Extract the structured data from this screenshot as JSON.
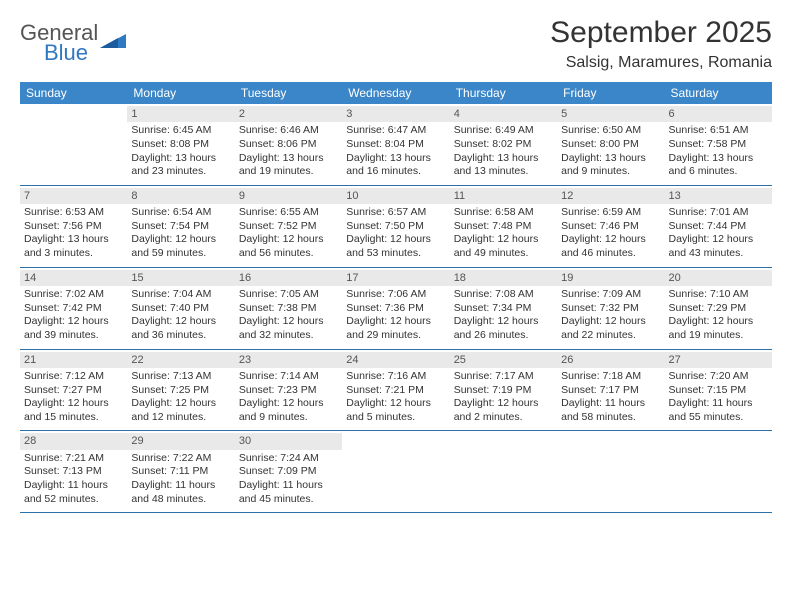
{
  "logo": {
    "word1": "General",
    "word2": "Blue",
    "color_gray": "#555555",
    "color_blue": "#2f78c2"
  },
  "title": "September 2025",
  "location": "Salsig, Maramures, Romania",
  "header_bg": "#3b86c8",
  "daynum_bg": "#e9e9e9",
  "border_color": "#2d6fa8",
  "dow": [
    "Sunday",
    "Monday",
    "Tuesday",
    "Wednesday",
    "Thursday",
    "Friday",
    "Saturday"
  ],
  "weeks": [
    [
      {
        "n": "",
        "lines": []
      },
      {
        "n": "1",
        "lines": [
          "Sunrise: 6:45 AM",
          "Sunset: 8:08 PM",
          "Daylight: 13 hours and 23 minutes."
        ]
      },
      {
        "n": "2",
        "lines": [
          "Sunrise: 6:46 AM",
          "Sunset: 8:06 PM",
          "Daylight: 13 hours and 19 minutes."
        ]
      },
      {
        "n": "3",
        "lines": [
          "Sunrise: 6:47 AM",
          "Sunset: 8:04 PM",
          "Daylight: 13 hours and 16 minutes."
        ]
      },
      {
        "n": "4",
        "lines": [
          "Sunrise: 6:49 AM",
          "Sunset: 8:02 PM",
          "Daylight: 13 hours and 13 minutes."
        ]
      },
      {
        "n": "5",
        "lines": [
          "Sunrise: 6:50 AM",
          "Sunset: 8:00 PM",
          "Daylight: 13 hours and 9 minutes."
        ]
      },
      {
        "n": "6",
        "lines": [
          "Sunrise: 6:51 AM",
          "Sunset: 7:58 PM",
          "Daylight: 13 hours and 6 minutes."
        ]
      }
    ],
    [
      {
        "n": "7",
        "lines": [
          "Sunrise: 6:53 AM",
          "Sunset: 7:56 PM",
          "Daylight: 13 hours and 3 minutes."
        ]
      },
      {
        "n": "8",
        "lines": [
          "Sunrise: 6:54 AM",
          "Sunset: 7:54 PM",
          "Daylight: 12 hours and 59 minutes."
        ]
      },
      {
        "n": "9",
        "lines": [
          "Sunrise: 6:55 AM",
          "Sunset: 7:52 PM",
          "Daylight: 12 hours and 56 minutes."
        ]
      },
      {
        "n": "10",
        "lines": [
          "Sunrise: 6:57 AM",
          "Sunset: 7:50 PM",
          "Daylight: 12 hours and 53 minutes."
        ]
      },
      {
        "n": "11",
        "lines": [
          "Sunrise: 6:58 AM",
          "Sunset: 7:48 PM",
          "Daylight: 12 hours and 49 minutes."
        ]
      },
      {
        "n": "12",
        "lines": [
          "Sunrise: 6:59 AM",
          "Sunset: 7:46 PM",
          "Daylight: 12 hours and 46 minutes."
        ]
      },
      {
        "n": "13",
        "lines": [
          "Sunrise: 7:01 AM",
          "Sunset: 7:44 PM",
          "Daylight: 12 hours and 43 minutes."
        ]
      }
    ],
    [
      {
        "n": "14",
        "lines": [
          "Sunrise: 7:02 AM",
          "Sunset: 7:42 PM",
          "Daylight: 12 hours and 39 minutes."
        ]
      },
      {
        "n": "15",
        "lines": [
          "Sunrise: 7:04 AM",
          "Sunset: 7:40 PM",
          "Daylight: 12 hours and 36 minutes."
        ]
      },
      {
        "n": "16",
        "lines": [
          "Sunrise: 7:05 AM",
          "Sunset: 7:38 PM",
          "Daylight: 12 hours and 32 minutes."
        ]
      },
      {
        "n": "17",
        "lines": [
          "Sunrise: 7:06 AM",
          "Sunset: 7:36 PM",
          "Daylight: 12 hours and 29 minutes."
        ]
      },
      {
        "n": "18",
        "lines": [
          "Sunrise: 7:08 AM",
          "Sunset: 7:34 PM",
          "Daylight: 12 hours and 26 minutes."
        ]
      },
      {
        "n": "19",
        "lines": [
          "Sunrise: 7:09 AM",
          "Sunset: 7:32 PM",
          "Daylight: 12 hours and 22 minutes."
        ]
      },
      {
        "n": "20",
        "lines": [
          "Sunrise: 7:10 AM",
          "Sunset: 7:29 PM",
          "Daylight: 12 hours and 19 minutes."
        ]
      }
    ],
    [
      {
        "n": "21",
        "lines": [
          "Sunrise: 7:12 AM",
          "Sunset: 7:27 PM",
          "Daylight: 12 hours and 15 minutes."
        ]
      },
      {
        "n": "22",
        "lines": [
          "Sunrise: 7:13 AM",
          "Sunset: 7:25 PM",
          "Daylight: 12 hours and 12 minutes."
        ]
      },
      {
        "n": "23",
        "lines": [
          "Sunrise: 7:14 AM",
          "Sunset: 7:23 PM",
          "Daylight: 12 hours and 9 minutes."
        ]
      },
      {
        "n": "24",
        "lines": [
          "Sunrise: 7:16 AM",
          "Sunset: 7:21 PM",
          "Daylight: 12 hours and 5 minutes."
        ]
      },
      {
        "n": "25",
        "lines": [
          "Sunrise: 7:17 AM",
          "Sunset: 7:19 PM",
          "Daylight: 12 hours and 2 minutes."
        ]
      },
      {
        "n": "26",
        "lines": [
          "Sunrise: 7:18 AM",
          "Sunset: 7:17 PM",
          "Daylight: 11 hours and 58 minutes."
        ]
      },
      {
        "n": "27",
        "lines": [
          "Sunrise: 7:20 AM",
          "Sunset: 7:15 PM",
          "Daylight: 11 hours and 55 minutes."
        ]
      }
    ],
    [
      {
        "n": "28",
        "lines": [
          "Sunrise: 7:21 AM",
          "Sunset: 7:13 PM",
          "Daylight: 11 hours and 52 minutes."
        ]
      },
      {
        "n": "29",
        "lines": [
          "Sunrise: 7:22 AM",
          "Sunset: 7:11 PM",
          "Daylight: 11 hours and 48 minutes."
        ]
      },
      {
        "n": "30",
        "lines": [
          "Sunrise: 7:24 AM",
          "Sunset: 7:09 PM",
          "Daylight: 11 hours and 45 minutes."
        ]
      },
      {
        "n": "",
        "lines": []
      },
      {
        "n": "",
        "lines": []
      },
      {
        "n": "",
        "lines": []
      },
      {
        "n": "",
        "lines": []
      }
    ]
  ]
}
